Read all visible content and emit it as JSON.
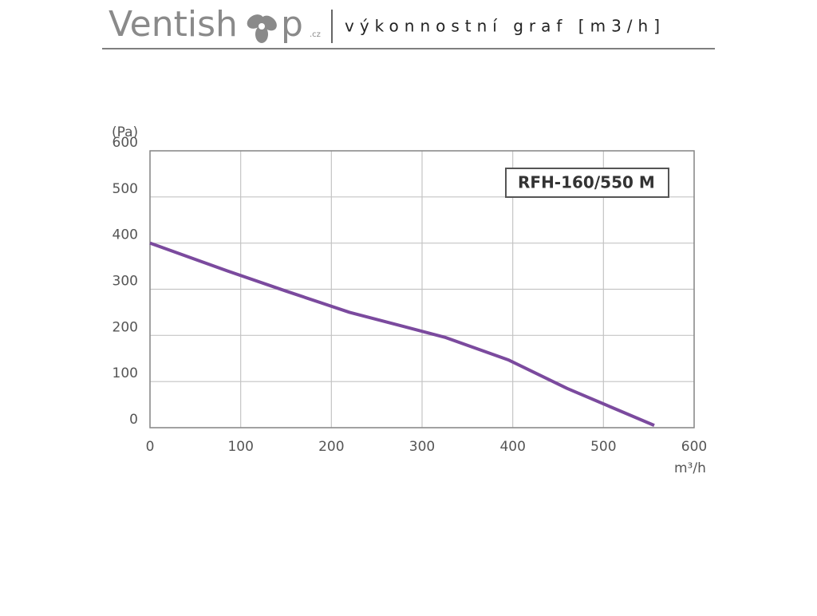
{
  "header": {
    "logo_left": "Ventish",
    "logo_right": "p",
    "logo_domain": ".cz",
    "title": "výkonnostní graf [m3/h]"
  },
  "chart_data": {
    "type": "line",
    "y_label": "(Pa)",
    "x_label": "m³/h",
    "x": [
      0,
      85,
      150,
      220,
      325,
      395,
      460,
      556
    ],
    "series": [
      {
        "name": "RFH-160/550 M",
        "color": "#7b4a9e",
        "values": [
          400,
          340,
          296,
          250,
          196,
          147,
          85,
          5
        ]
      }
    ],
    "xlim": [
      0,
      600
    ],
    "ylim": [
      0,
      600
    ],
    "xticks": [
      0,
      100,
      200,
      300,
      400,
      500,
      600
    ],
    "yticks": [
      0,
      100,
      200,
      300,
      400,
      500,
      600
    ],
    "grid": true
  }
}
